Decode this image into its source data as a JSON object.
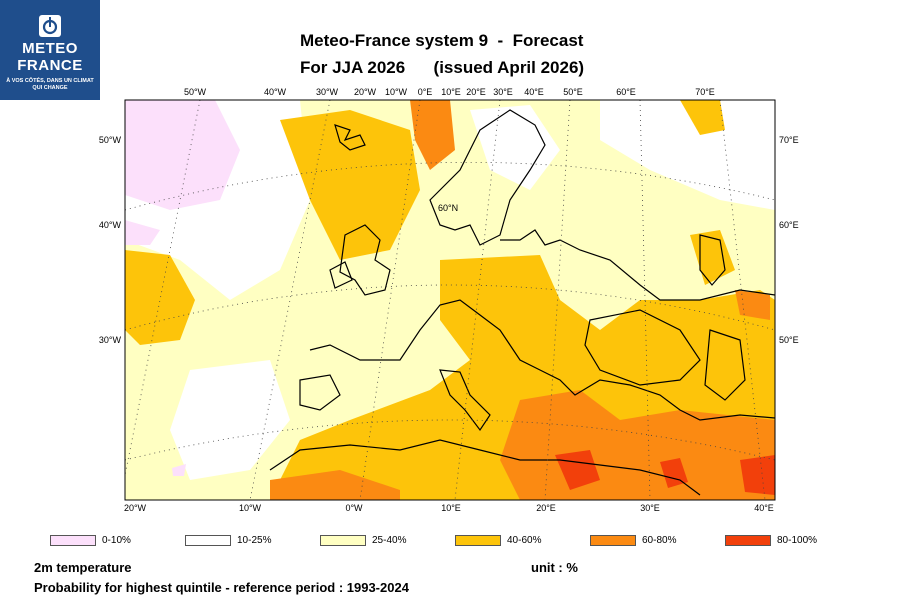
{
  "logo": {
    "name_line1": "METEO",
    "name_line2": "FRANCE",
    "tagline": "À VOS CÔTÉS, DANS UN CLIMAT QUI CHANGE",
    "background": "#1f4e8c",
    "icon": "meteo-france-mark-icon"
  },
  "title": {
    "line1": "Meteo-France system 9  -  Forecast",
    "line2": "For JJA 2026      (issued April 2026)"
  },
  "map": {
    "top_labels": [
      "50°W",
      "40°W",
      "30°W",
      "20°W",
      "10°W",
      "0°E",
      "10°E",
      "20°E",
      "30°E",
      "40°E",
      "50°E",
      "60°E",
      "70°E"
    ],
    "left_labels": [
      "50°W",
      "40°W",
      "30°W"
    ],
    "right_labels": [
      "70°E",
      "60°E",
      "50°E"
    ],
    "bottom_labels": [
      "20°W",
      "10°W",
      "0°W",
      "10°E",
      "20°E",
      "30°E",
      "40°E"
    ],
    "inner_label": "60°N",
    "colors": {
      "background_class": "#ffffff",
      "coast": "#000000",
      "graticule": "#444444"
    }
  },
  "legend": [
    {
      "label": "0-10%",
      "color": "#fce0fb"
    },
    {
      "label": "10-25%",
      "color": "#ffffff"
    },
    {
      "label": "25-40%",
      "color": "#ffffc2"
    },
    {
      "label": "40-60%",
      "color": "#fdc40a"
    },
    {
      "label": "60-80%",
      "color": "#fb8a12"
    },
    {
      "label": "80-100%",
      "color": "#f2400b"
    }
  ],
  "footer": {
    "variable": "2m temperature",
    "unit": "unit : %",
    "description": "Probability for highest quintile - reference period : 1993-2024"
  }
}
